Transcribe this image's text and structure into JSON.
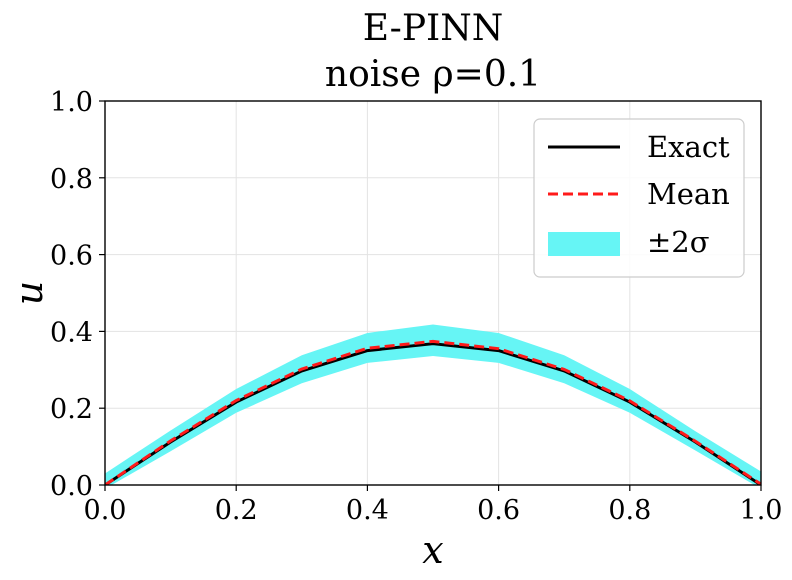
{
  "chart_data": {
    "type": "line",
    "title": "E-PINN",
    "subtitle": "noise ρ=0.1",
    "xlabel": "x",
    "ylabel": "u",
    "xlim": [
      0.0,
      1.0
    ],
    "ylim": [
      0.0,
      1.0
    ],
    "grid": true,
    "legend_position": "top-right",
    "x_ticks": [
      "0.0",
      "0.2",
      "0.4",
      "0.6",
      "0.8",
      "1.0"
    ],
    "y_ticks": [
      "0.0",
      "0.2",
      "0.4",
      "0.6",
      "0.8",
      "1.0"
    ],
    "x": [
      0.0,
      0.1,
      0.2,
      0.3,
      0.4,
      0.5,
      0.6,
      0.7,
      0.8,
      0.9,
      1.0
    ],
    "series": [
      {
        "name": "Exact",
        "style": "solid",
        "color": "#000000",
        "values": [
          0.0,
          0.112,
          0.216,
          0.297,
          0.35,
          0.368,
          0.35,
          0.297,
          0.216,
          0.112,
          0.0
        ]
      },
      {
        "name": "Mean",
        "style": "dashed",
        "color": "#ff1a1a",
        "values": [
          0.0,
          0.115,
          0.22,
          0.302,
          0.356,
          0.374,
          0.355,
          0.301,
          0.219,
          0.114,
          0.002
        ]
      }
    ],
    "band": {
      "name": "±2σ",
      "color": "#66f5f5",
      "lower": [
        -0.01,
        0.088,
        0.188,
        0.265,
        0.318,
        0.336,
        0.318,
        0.265,
        0.188,
        0.09,
        -0.01
      ],
      "upper": [
        0.03,
        0.142,
        0.25,
        0.338,
        0.396,
        0.418,
        0.396,
        0.338,
        0.25,
        0.14,
        0.035
      ]
    }
  }
}
